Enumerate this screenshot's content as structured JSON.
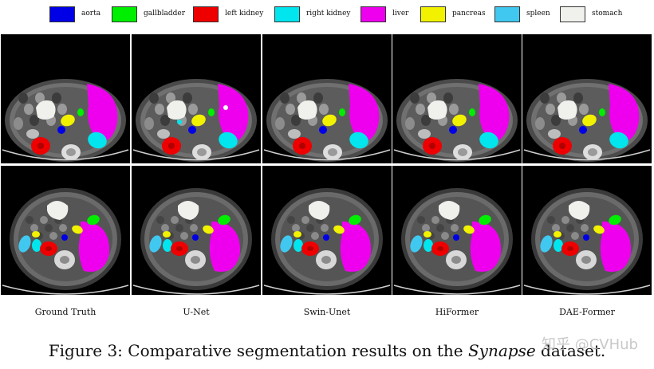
{
  "legend": [
    {
      "label": "aorta",
      "color": "#0000e6"
    },
    {
      "label": "gallbladder",
      "color": "#00ee00"
    },
    {
      "label": "left kidney",
      "color": "#ee0000"
    },
    {
      "label": "right kidney",
      "color": "#00e5ee"
    },
    {
      "label": "liver",
      "color": "#ee00ee"
    },
    {
      "label": "pancreas",
      "color": "#f2f200"
    },
    {
      "label": "spleen",
      "color": "#40c8f0"
    },
    {
      "label": "stomach",
      "color": "#f0f0ec"
    }
  ],
  "columns": [
    {
      "label": "Ground Truth"
    },
    {
      "label": "U-Net"
    },
    {
      "label": "Swin-Unet"
    },
    {
      "label": "HiFormer"
    },
    {
      "label": "DAE-Former"
    }
  ],
  "caption": {
    "prefix": "Figure 3: Comparative segmentation results on the ",
    "dataset": "Synapse",
    "suffix": " dataset."
  },
  "watermark": "知乎 @CVHub"
}
